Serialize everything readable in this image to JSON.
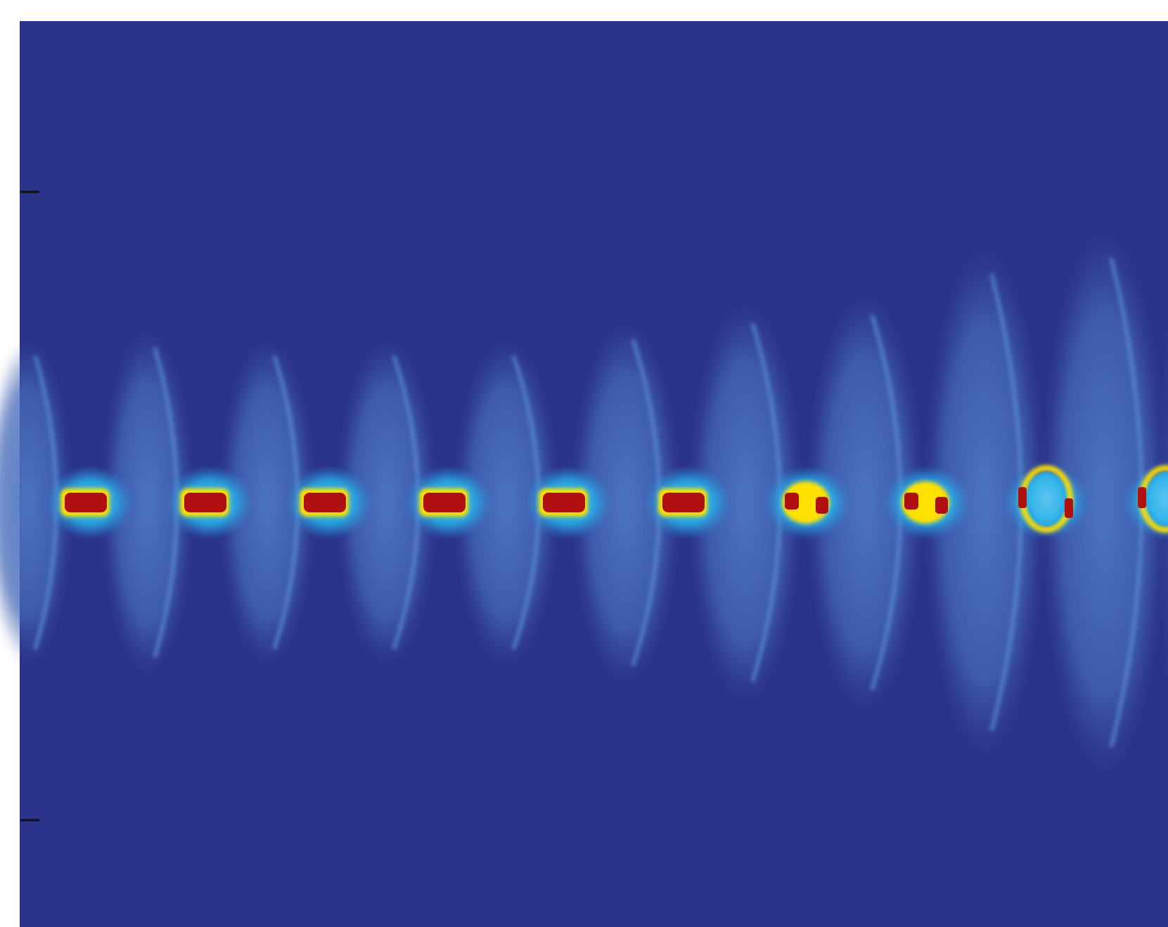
{
  "image": {
    "background_color": "#2b338a",
    "colormap": [
      "#2b338a",
      "#3c5ab0",
      "#2cb6ee",
      "#ffe100",
      "#b01010"
    ],
    "frame_stroke": "#222222",
    "plumes": [
      {
        "index": 1,
        "state": "compact",
        "spread": 0.18
      },
      {
        "index": 2,
        "state": "compact",
        "spread": 0.19
      },
      {
        "index": 3,
        "state": "compact",
        "spread": 0.18
      },
      {
        "index": 4,
        "state": "compact",
        "spread": 0.18
      },
      {
        "index": 5,
        "state": "compact",
        "spread": 0.18
      },
      {
        "index": 6,
        "state": "compact",
        "spread": 0.2
      },
      {
        "index": 7,
        "state": "mixed",
        "spread": 0.22
      },
      {
        "index": 8,
        "state": "mixed",
        "spread": 0.23
      },
      {
        "index": 9,
        "state": "ring",
        "spread": 0.28
      },
      {
        "index": 10,
        "state": "ring",
        "spread": 0.3
      },
      {
        "index": 11,
        "state": "ring",
        "spread": 0.4
      }
    ]
  }
}
